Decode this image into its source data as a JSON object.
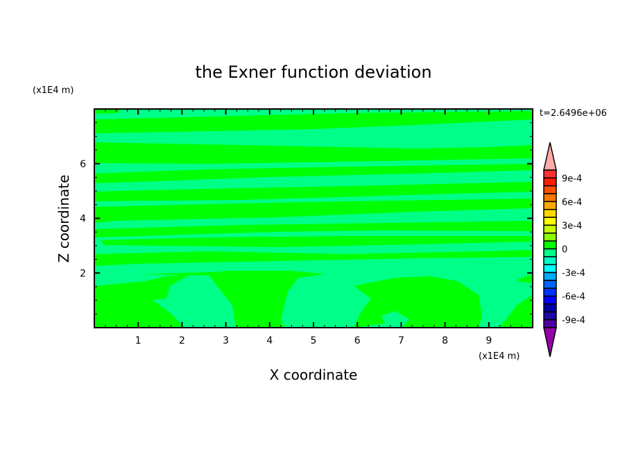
{
  "chart_data": {
    "type": "heatmap",
    "title": "the Exner function deviation",
    "xlabel": "X coordinate",
    "ylabel": "Z coordinate",
    "x_unit": "(x1E4 m)",
    "y_unit": "(x1E4 m)",
    "time_label": "t=2.6496e+06",
    "xlim": [
      0,
      10
    ],
    "ylim": [
      0,
      8
    ],
    "xticks": [
      "1",
      "2",
      "3",
      "4",
      "5",
      "6",
      "7",
      "8",
      "9"
    ],
    "yticks": [
      "2",
      "4",
      "6"
    ],
    "grid": false,
    "colorbar": {
      "levels_min": -0.001,
      "levels_max": 0.001,
      "step": 0.0001,
      "tick_labels": [
        "9e-4",
        "6e-4",
        "3e-4",
        "0",
        "-3e-4",
        "-6e-4",
        "-9e-4"
      ],
      "colors_top_to_bottom": [
        "#ff3030",
        "#ff1e00",
        "#ff5000",
        "#ff7800",
        "#ffa800",
        "#ffd800",
        "#ffff00",
        "#c8ff00",
        "#8cff00",
        "#00ff00",
        "#00ff88",
        "#00ffc8",
        "#00ffff",
        "#00aaff",
        "#0064ff",
        "#0032ff",
        "#0000ff",
        "#0000aa",
        "#1e0aa0",
        "#5000a0"
      ],
      "over_color": "#ffaaaa",
      "under_color": "#9600aa"
    },
    "field_values_present": [
      "0 to 1e-4 (green)",
      "-1e-4 to 0 (light green)"
    ],
    "colors": {
      "positive_band": "#00ff00",
      "negative_band": "#00ff88"
    }
  }
}
